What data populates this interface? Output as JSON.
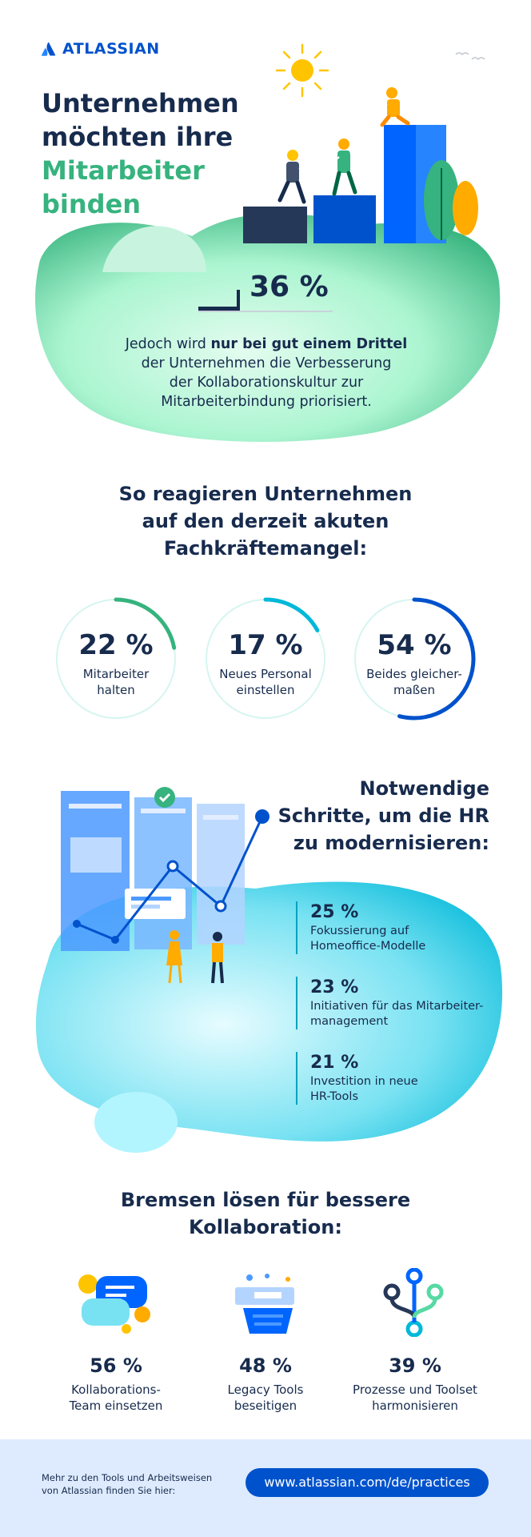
{
  "brand": {
    "name": "ATLASSIAN"
  },
  "header": {
    "line1": "Unternehmen",
    "line2": "möchten ihre",
    "line3": "Mitarbeiter",
    "line4": "binden"
  },
  "highlight": {
    "value": "36 %",
    "pre": "Jedoch wird ",
    "bold": "nur bei gut einem Drittel",
    "line2": "der Unternehmen die Verbesserung",
    "line3": "der Kollaborationskultur zur",
    "line4": "Mitarbeiterbindung priorisiert."
  },
  "reaction": {
    "title_l1": "So reagieren Unternehmen",
    "title_l2": "auf den derzeit akuten",
    "title_l3": "Fachkräftemangel:",
    "items": [
      {
        "value": "22 %",
        "label_l1": "Mitarbeiter",
        "label_l2": "halten",
        "pct": 22,
        "color": "#36b37e"
      },
      {
        "value": "17 %",
        "label_l1": "Neues Personal",
        "label_l2": "einstellen",
        "pct": 17,
        "color": "#00b8d9"
      },
      {
        "value": "54 %",
        "label_l1": "Beides gleicher-",
        "label_l2": "maßen",
        "pct": 54,
        "color": "#0052cc"
      }
    ]
  },
  "hr": {
    "title_l1": "Notwendige",
    "title_l2": "Schritte, um die HR",
    "title_l3": "zu modernisieren:",
    "items": [
      {
        "value": "25 %",
        "label_l1": "Fokussierung auf",
        "label_l2": "Homeoffice-Modelle"
      },
      {
        "value": "23 %",
        "label_l1": "Initiativen für das Mitarbeiter-",
        "label_l2": "management"
      },
      {
        "value": "21 %",
        "label_l1": "Investition in neue",
        "label_l2": "HR-Tools"
      }
    ]
  },
  "brakes": {
    "title_l1": "Bremsen lösen für bessere",
    "title_l2": "Kollaboration:",
    "items": [
      {
        "value": "56 %",
        "label_l1": "Kollaborations-",
        "label_l2": "Team einsetzen",
        "icon": "chat-bubbles-icon"
      },
      {
        "value": "48 %",
        "label_l1": "Legacy Tools",
        "label_l2": "beseitigen",
        "icon": "tools-stack-icon"
      },
      {
        "value": "39 %",
        "label_l1": "Prozesse und Toolset",
        "label_l2": "harmonisieren",
        "icon": "branch-nodes-icon"
      }
    ]
  },
  "footer": {
    "text_l1": "Mehr zu den Tools und Arbeitsweisen",
    "text_l2": "von Atlassian finden Sie hier:",
    "link": "www.atlassian.com/de/practices"
  },
  "colors": {
    "navy": "#172b4d",
    "green": "#36b37e",
    "blue": "#0052cc",
    "teal": "#00b8d9"
  }
}
